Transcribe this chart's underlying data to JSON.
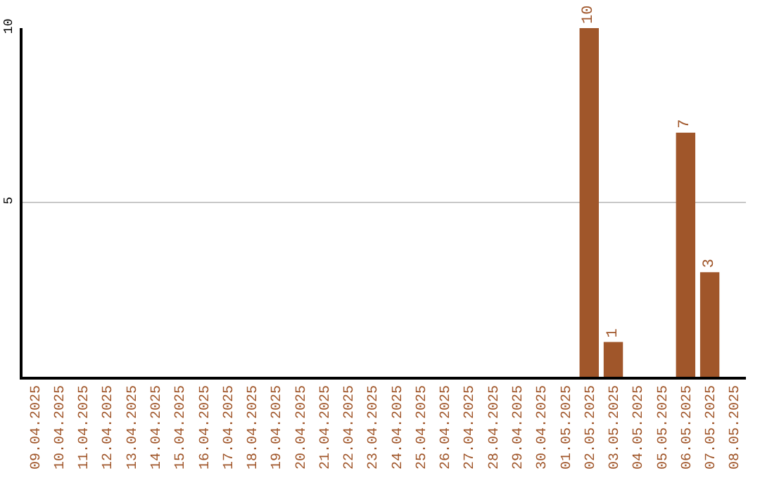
{
  "chart_data": {
    "type": "bar",
    "categories": [
      "09.04.2025",
      "10.04.2025",
      "11.04.2025",
      "12.04.2025",
      "13.04.2025",
      "14.04.2025",
      "15.04.2025",
      "16.04.2025",
      "17.04.2025",
      "18.04.2025",
      "19.04.2025",
      "20.04.2025",
      "21.04.2025",
      "22.04.2025",
      "23.04.2025",
      "24.04.2025",
      "25.04.2025",
      "26.04.2025",
      "27.04.2025",
      "28.04.2025",
      "29.04.2025",
      "30.04.2025",
      "01.05.2025",
      "02.05.2025",
      "03.05.2025",
      "04.05.2025",
      "05.05.2025",
      "06.05.2025",
      "07.05.2025",
      "08.05.2025"
    ],
    "values": [
      0,
      0,
      0,
      0,
      0,
      0,
      0,
      0,
      0,
      0,
      0,
      0,
      0,
      0,
      0,
      0,
      0,
      0,
      0,
      0,
      0,
      0,
      0,
      10,
      1,
      0,
      0,
      7,
      3,
      0
    ],
    "value_labels": [
      null,
      null,
      null,
      null,
      null,
      null,
      null,
      null,
      null,
      null,
      null,
      null,
      null,
      null,
      null,
      null,
      null,
      null,
      null,
      null,
      null,
      null,
      null,
      "10",
      "1",
      null,
      null,
      "7",
      "3",
      null
    ],
    "color": "#a0562a",
    "ylim": [
      0,
      10
    ],
    "yticks": [
      5,
      10
    ],
    "grid": "y",
    "legend": false
  }
}
